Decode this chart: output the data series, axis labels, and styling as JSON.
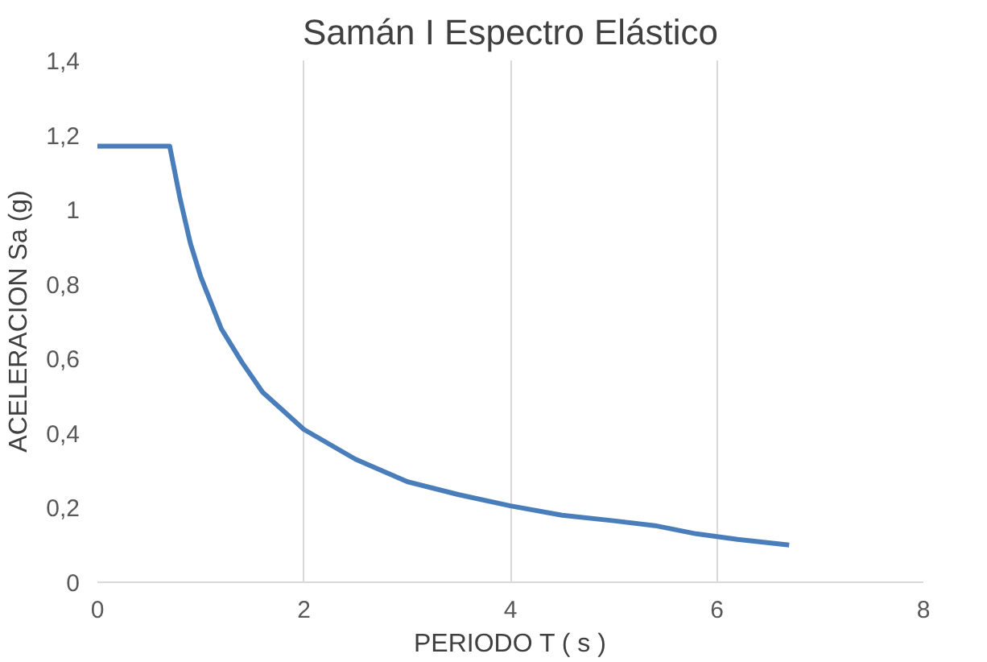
{
  "chart_data": {
    "type": "line",
    "title": "Samán I Espectro Elástico",
    "xlabel": "PERIODO T ( s )",
    "ylabel": "ACELERACION Sa (g)",
    "x": [
      0,
      0.7,
      0.8,
      0.9,
      1.0,
      1.2,
      1.4,
      1.6,
      1.8,
      2.0,
      2.5,
      3.0,
      3.5,
      4.0,
      4.5,
      5.0,
      5.4,
      5.8,
      6.2,
      6.7
    ],
    "series": [
      {
        "color": "#4a7ebb",
        "values": [
          1.17,
          1.17,
          1.03,
          0.91,
          0.82,
          0.68,
          0.59,
          0.51,
          0.46,
          0.41,
          0.33,
          0.27,
          0.235,
          0.205,
          0.18,
          0.165,
          0.152,
          0.13,
          0.115,
          0.1
        ]
      }
    ],
    "xlim": [
      0,
      8
    ],
    "xticks": [
      0,
      2,
      4,
      6,
      8
    ],
    "ylim": [
      0,
      1.4
    ],
    "yticks": [
      0,
      {
        "value": 0.2,
        "label": "0,2"
      },
      {
        "value": 0.4,
        "label": "0,4"
      },
      {
        "value": 0.6,
        "label": "0,6"
      },
      {
        "value": 0.8,
        "label": "0,8"
      },
      1,
      {
        "value": 1.2,
        "label": "1,2"
      },
      {
        "value": 1.4,
        "label": "1,4"
      }
    ],
    "grid": "x",
    "marker": "none",
    "line_style": "solid"
  }
}
